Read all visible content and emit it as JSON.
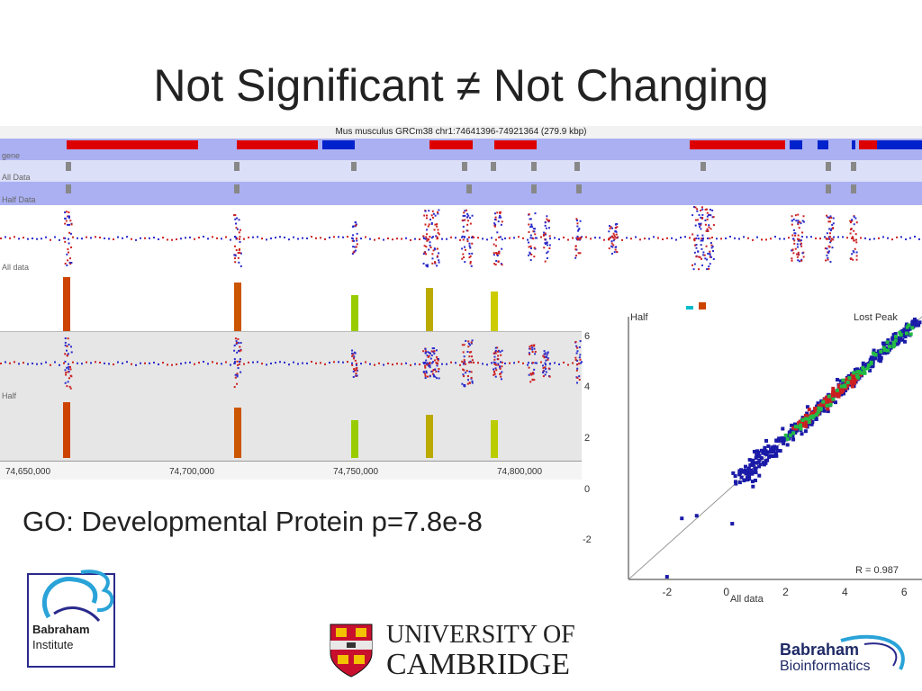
{
  "slide": {
    "title": "Not Significant ≠ Not Changing",
    "go_result": "GO: Developmental Protein p=7.8e-8"
  },
  "browser": {
    "location": "Mus musculus GRCm38 chr1:74641396-74921364 (279.9 kbp)",
    "tracks": [
      "gene",
      "All Data",
      "Half Data"
    ],
    "lane_labels": {
      "all": "All data",
      "half": "Half"
    },
    "axis_ticks": [
      "74,650,000",
      "74,700,000",
      "74,750,000",
      "74,800,000"
    ],
    "scale_ticks": [
      "6",
      "4",
      "2",
      "0",
      "-2"
    ]
  },
  "chart_data": {
    "type": "scatter",
    "title": "",
    "xlabel": "All data",
    "ylabel": "Half",
    "annotation": "Lost Peak",
    "stat": "R = 0.987",
    "x_ticks": [
      "-2",
      "0",
      "2",
      "4",
      "6"
    ],
    "xlim": [
      -3.3,
      6.6
    ],
    "ylim": [
      -3.3,
      6.6
    ],
    "groups": [
      {
        "name": "blue",
        "color": "#1a1aa8"
      },
      {
        "name": "red",
        "color": "#cc2020"
      },
      {
        "name": "green",
        "color": "#22bb44"
      }
    ],
    "outliers": [
      [
        -2.0,
        -3.2
      ],
      [
        0.2,
        -1.2
      ],
      [
        -1.0,
        -0.9
      ],
      [
        -1.5,
        -1.0
      ],
      [
        0.9,
        0.2
      ]
    ]
  },
  "logos": {
    "babraham_institute": [
      "Babraham",
      "Institute"
    ],
    "cambridge": [
      "UNIVERSITY OF",
      "CAMBRIDGE"
    ],
    "babraham_bioinformatics": [
      "Babraham",
      "Bioinformatics"
    ]
  }
}
